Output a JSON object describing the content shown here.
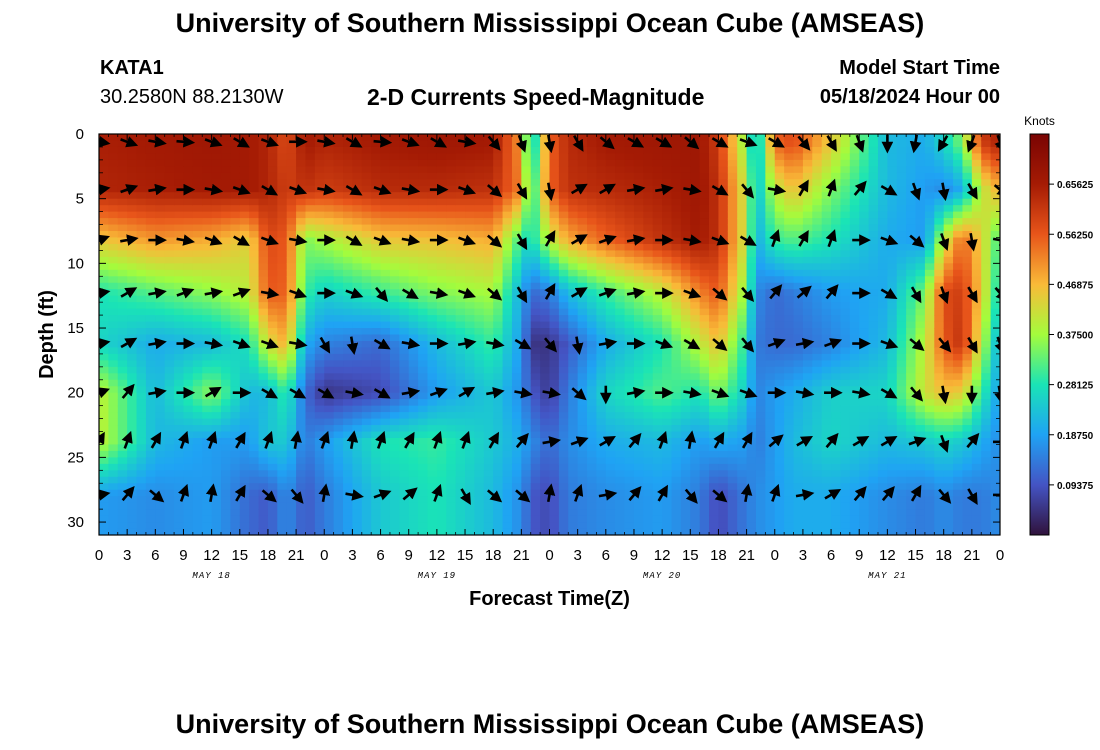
{
  "header": {
    "title": "University of Southern Mississippi Ocean Cube (AMSEAS)",
    "station": "KATA1",
    "coords": "30.2580N  88.2130W",
    "plot_title": "2-D Currents Speed-Magnitude",
    "model_start_label": "Model Start Time",
    "model_start_value": "05/18/2024 Hour 00",
    "footer_title": "University of Southern Mississippi Ocean Cube (AMSEAS)"
  },
  "chart_data": {
    "type": "heatmap",
    "title": "2-D Currents Speed-Magnitude",
    "xlabel": "Forecast Time(Z)",
    "ylabel": "Depth (ft)",
    "x_ticks": [
      "0",
      "3",
      "6",
      "9",
      "12",
      "15",
      "18",
      "21",
      "0",
      "3",
      "6",
      "9",
      "12",
      "15",
      "18",
      "21",
      "0",
      "3",
      "6",
      "9",
      "12",
      "15",
      "18",
      "21",
      "0",
      "3",
      "6",
      "9",
      "12",
      "15",
      "18",
      "21",
      "0"
    ],
    "x_range_hours": [
      0,
      96
    ],
    "day_labels": [
      {
        "label": "MAY 18",
        "hour": 12
      },
      {
        "label": "MAY 19",
        "hour": 36
      },
      {
        "label": "MAY 20",
        "hour": 60
      },
      {
        "label": "MAY 21",
        "hour": 84
      }
    ],
    "y_ticks": [
      "0",
      "5",
      "10",
      "15",
      "20",
      "25",
      "30"
    ],
    "y_range_ft": [
      0,
      31
    ],
    "y_inverted": true,
    "colorbar": {
      "title": "Knots",
      "ticks": [
        "0.09375",
        "0.18750",
        "0.28125",
        "0.37500",
        "0.46875",
        "0.56250",
        "0.65625"
      ],
      "range": [
        0,
        0.75
      ],
      "colors": [
        "#30123b",
        "#4454c4",
        "#1fa3f4",
        "#1ae4b6",
        "#a4fc3c",
        "#f9ba38",
        "#e8551a",
        "#a51b04",
        "#7a0403"
      ]
    },
    "depth_levels_ft": [
      0.6,
      4.3,
      8.2,
      12.3,
      16.2,
      20.0,
      23.8,
      27.9
    ],
    "level_speeds_knots": {
      "hours": [
        0,
        6,
        12,
        16,
        18,
        20,
        22,
        24,
        30,
        36,
        42,
        45,
        46,
        48,
        50,
        54,
        60,
        64,
        66,
        69,
        70,
        72,
        74,
        78,
        84,
        88,
        90,
        92,
        94,
        96
      ],
      "levels": [
        [
          0.65,
          0.66,
          0.67,
          0.66,
          0.64,
          0.58,
          0.66,
          0.64,
          0.66,
          0.67,
          0.66,
          0.5,
          0.2,
          0.55,
          0.63,
          0.66,
          0.67,
          0.67,
          0.6,
          0.35,
          0.2,
          0.55,
          0.58,
          0.45,
          0.22,
          0.2,
          0.26,
          0.35,
          0.6,
          0.65
        ],
        [
          0.64,
          0.65,
          0.66,
          0.66,
          0.64,
          0.6,
          0.62,
          0.6,
          0.63,
          0.63,
          0.62,
          0.52,
          0.26,
          0.55,
          0.62,
          0.63,
          0.65,
          0.67,
          0.62,
          0.4,
          0.22,
          0.4,
          0.46,
          0.35,
          0.22,
          0.18,
          0.16,
          0.2,
          0.4,
          0.48
        ],
        [
          0.45,
          0.5,
          0.48,
          0.44,
          0.58,
          0.56,
          0.35,
          0.38,
          0.45,
          0.46,
          0.48,
          0.3,
          0.26,
          0.4,
          0.48,
          0.55,
          0.62,
          0.66,
          0.62,
          0.4,
          0.2,
          0.3,
          0.32,
          0.28,
          0.2,
          0.18,
          0.4,
          0.55,
          0.44,
          0.3
        ],
        [
          0.28,
          0.32,
          0.36,
          0.4,
          0.56,
          0.55,
          0.3,
          0.25,
          0.3,
          0.35,
          0.38,
          0.2,
          0.12,
          0.14,
          0.22,
          0.3,
          0.4,
          0.52,
          0.56,
          0.35,
          0.16,
          0.12,
          0.14,
          0.18,
          0.2,
          0.35,
          0.58,
          0.6,
          0.45,
          0.25
        ],
        [
          0.26,
          0.2,
          0.22,
          0.28,
          0.42,
          0.48,
          0.2,
          0.15,
          0.12,
          0.22,
          0.3,
          0.18,
          0.05,
          0.05,
          0.1,
          0.2,
          0.28,
          0.4,
          0.46,
          0.28,
          0.14,
          0.12,
          0.12,
          0.15,
          0.22,
          0.4,
          0.56,
          0.62,
          0.4,
          0.2
        ],
        [
          0.4,
          0.22,
          0.36,
          0.22,
          0.22,
          0.3,
          0.12,
          0.05,
          0.08,
          0.18,
          0.24,
          0.16,
          0.1,
          0.06,
          0.14,
          0.26,
          0.32,
          0.28,
          0.35,
          0.24,
          0.15,
          0.18,
          0.2,
          0.25,
          0.26,
          0.42,
          0.46,
          0.44,
          0.3,
          0.18
        ],
        [
          0.4,
          0.22,
          0.18,
          0.18,
          0.24,
          0.24,
          0.14,
          0.18,
          0.28,
          0.3,
          0.24,
          0.2,
          0.16,
          0.12,
          0.16,
          0.2,
          0.22,
          0.18,
          0.2,
          0.18,
          0.14,
          0.18,
          0.22,
          0.26,
          0.22,
          0.24,
          0.26,
          0.24,
          0.2,
          0.16
        ],
        [
          0.18,
          0.16,
          0.18,
          0.12,
          0.1,
          0.16,
          0.1,
          0.14,
          0.24,
          0.28,
          0.22,
          0.16,
          0.1,
          0.08,
          0.14,
          0.16,
          0.18,
          0.14,
          0.08,
          0.14,
          0.16,
          0.18,
          0.2,
          0.2,
          0.16,
          0.14,
          0.16,
          0.14,
          0.14,
          0.16
        ]
      ]
    },
    "vector_hours": [
      0,
      3,
      6,
      9,
      12,
      15,
      18,
      21,
      24,
      27,
      30,
      33,
      36,
      39,
      42,
      45,
      48,
      51,
      54,
      57,
      60,
      63,
      66,
      69,
      72,
      75,
      78,
      81,
      84,
      87,
      90,
      93,
      96
    ],
    "vector_directions_deg": [
      [
        100,
        110,
        100,
        95,
        110,
        120,
        110,
        90,
        100,
        120,
        95,
        110,
        120,
        100,
        140,
        160,
        170,
        150,
        130,
        120,
        120,
        130,
        120,
        110,
        120,
        140,
        150,
        160,
        180,
        190,
        210,
        200,
        160
      ],
      [
        80,
        70,
        80,
        90,
        100,
        110,
        120,
        110,
        100,
        120,
        110,
        100,
        90,
        110,
        130,
        150,
        170,
        60,
        60,
        80,
        80,
        100,
        120,
        140,
        100,
        30,
        20,
        40,
        120,
        160,
        170,
        150,
        130
      ],
      [
        70,
        80,
        90,
        100,
        110,
        120,
        110,
        100,
        90,
        120,
        110,
        100,
        90,
        110,
        130,
        150,
        30,
        60,
        70,
        80,
        90,
        100,
        110,
        120,
        20,
        30,
        20,
        90,
        110,
        130,
        160,
        170,
        100
      ],
      [
        80,
        60,
        80,
        70,
        80,
        70,
        100,
        110,
        90,
        110,
        140,
        120,
        100,
        110,
        130,
        150,
        30,
        60,
        70,
        80,
        90,
        110,
        130,
        140,
        40,
        50,
        40,
        90,
        120,
        150,
        160,
        150,
        140
      ],
      [
        80,
        60,
        80,
        90,
        100,
        110,
        110,
        100,
        150,
        170,
        120,
        100,
        90,
        80,
        100,
        120,
        140,
        170,
        80,
        90,
        110,
        120,
        130,
        140,
        70,
        80,
        70,
        90,
        110,
        130,
        140,
        150,
        160
      ],
      [
        70,
        40,
        80,
        90,
        60,
        90,
        120,
        120,
        120,
        100,
        120,
        80,
        70,
        60,
        80,
        100,
        100,
        130,
        180,
        80,
        90,
        100,
        110,
        110,
        90,
        100,
        90,
        100,
        120,
        140,
        170,
        180,
        170
      ],
      [
        30,
        20,
        30,
        20,
        20,
        30,
        20,
        10,
        20,
        10,
        20,
        30,
        20,
        20,
        30,
        40,
        80,
        70,
        60,
        40,
        20,
        10,
        30,
        30,
        50,
        60,
        40,
        60,
        60,
        70,
        160,
        40,
        90
      ],
      [
        80,
        40,
        130,
        20,
        10,
        30,
        130,
        140,
        10,
        100,
        70,
        50,
        20,
        150,
        130,
        130,
        10,
        20,
        80,
        40,
        30,
        140,
        130,
        10,
        20,
        80,
        60,
        40,
        40,
        30,
        140,
        150,
        90
      ]
    ]
  }
}
